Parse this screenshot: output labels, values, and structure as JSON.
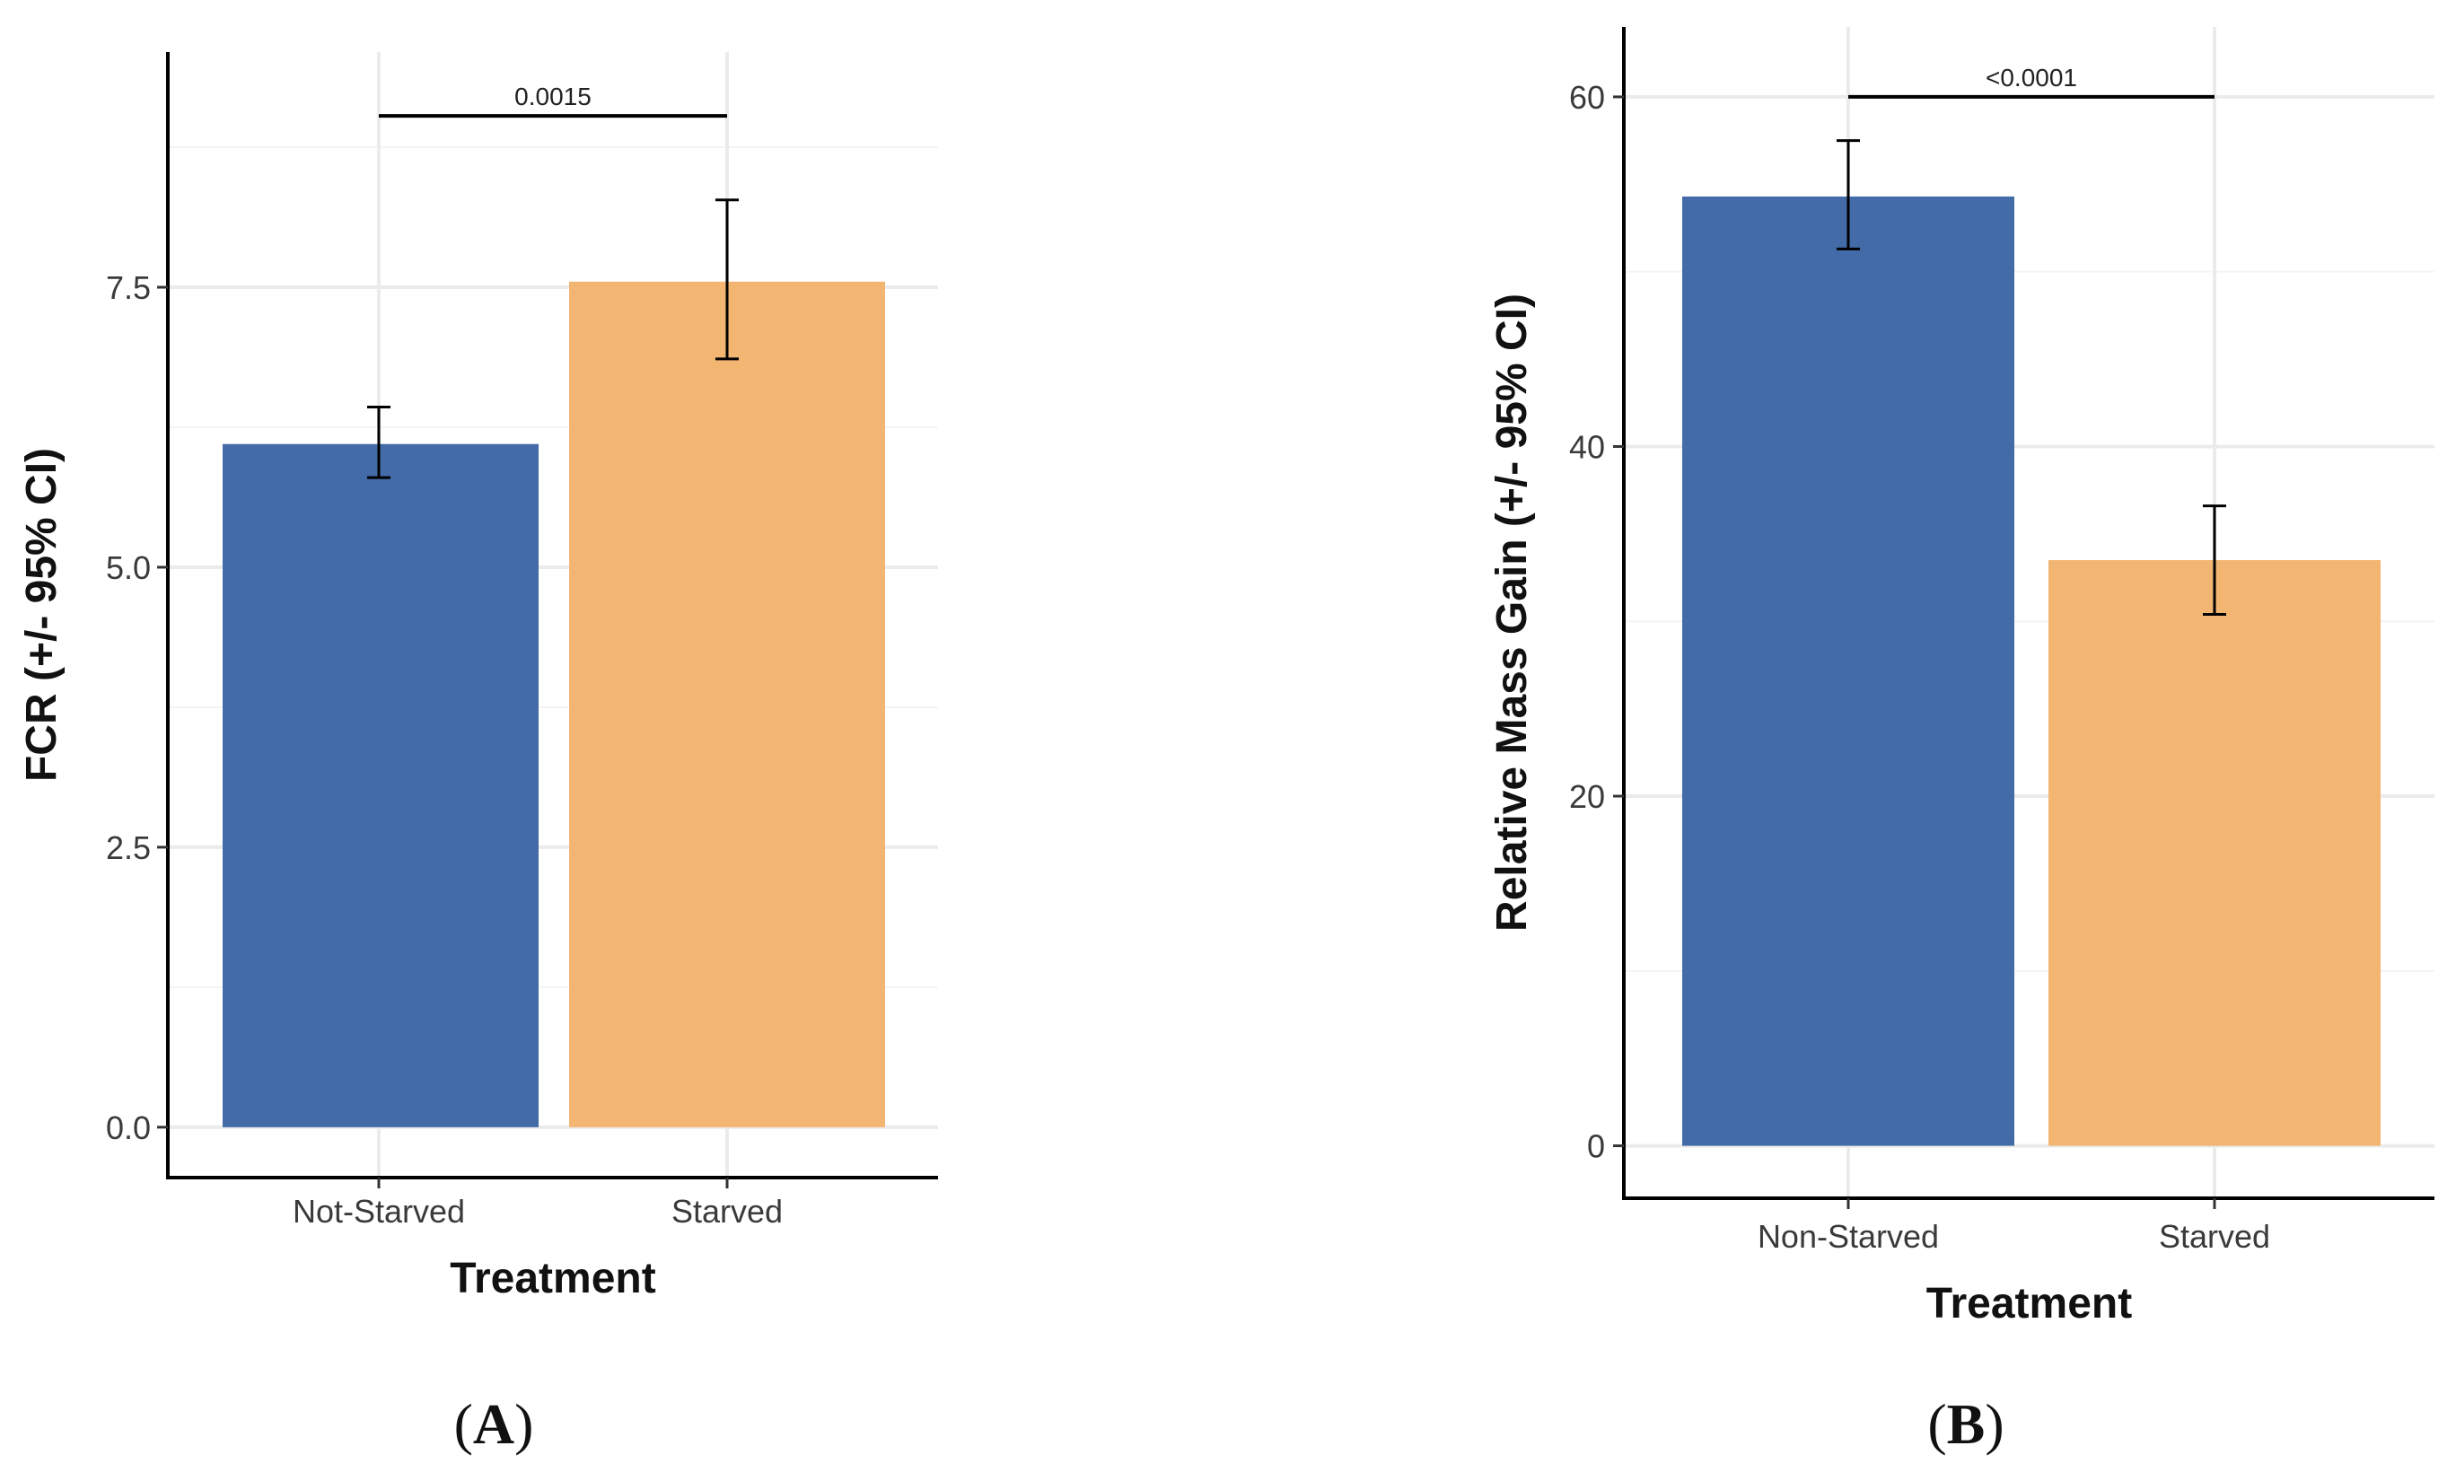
{
  "chart_data": [
    {
      "type": "bar",
      "panel_label": "A",
      "categories": [
        "Not-Starved",
        "Starved"
      ],
      "values": [
        6.1,
        7.55
      ],
      "error_bars": [
        {
          "low": 5.8,
          "high": 6.43
        },
        {
          "low": 6.86,
          "high": 8.28
        }
      ],
      "colors": [
        "#426ba8",
        "#f2b572"
      ],
      "ylim": [
        -0.45,
        9.6
      ],
      "yticks": [
        0.0,
        2.5,
        5.0,
        7.5
      ],
      "ytick_labels": [
        "0.0",
        "2.5",
        "5.0",
        "7.5"
      ],
      "xlabel": "Treatment",
      "ylabel": "FCR (+/- 95% CI)",
      "grid": true,
      "significance": {
        "label": "0.0015",
        "value": 9.03
      }
    },
    {
      "type": "bar",
      "panel_label": "B",
      "categories": [
        "Non-Starved",
        "Starved"
      ],
      "values": [
        54.3,
        33.5
      ],
      "error_bars": [
        {
          "low": 51.3,
          "high": 57.5
        },
        {
          "low": 30.4,
          "high": 36.6
        }
      ],
      "colors": [
        "#426ba8",
        "#f2b572"
      ],
      "ylim": [
        -3.0,
        64.0
      ],
      "yticks": [
        0,
        20,
        40,
        60
      ],
      "ytick_labels": [
        "0",
        "20",
        "40",
        "60"
      ],
      "xlabel": "Treatment",
      "ylabel": "Relative Mass Gain (+/- 95% CI)",
      "grid": true,
      "significance": {
        "label": "<0.0001",
        "value": 60.0
      }
    }
  ]
}
